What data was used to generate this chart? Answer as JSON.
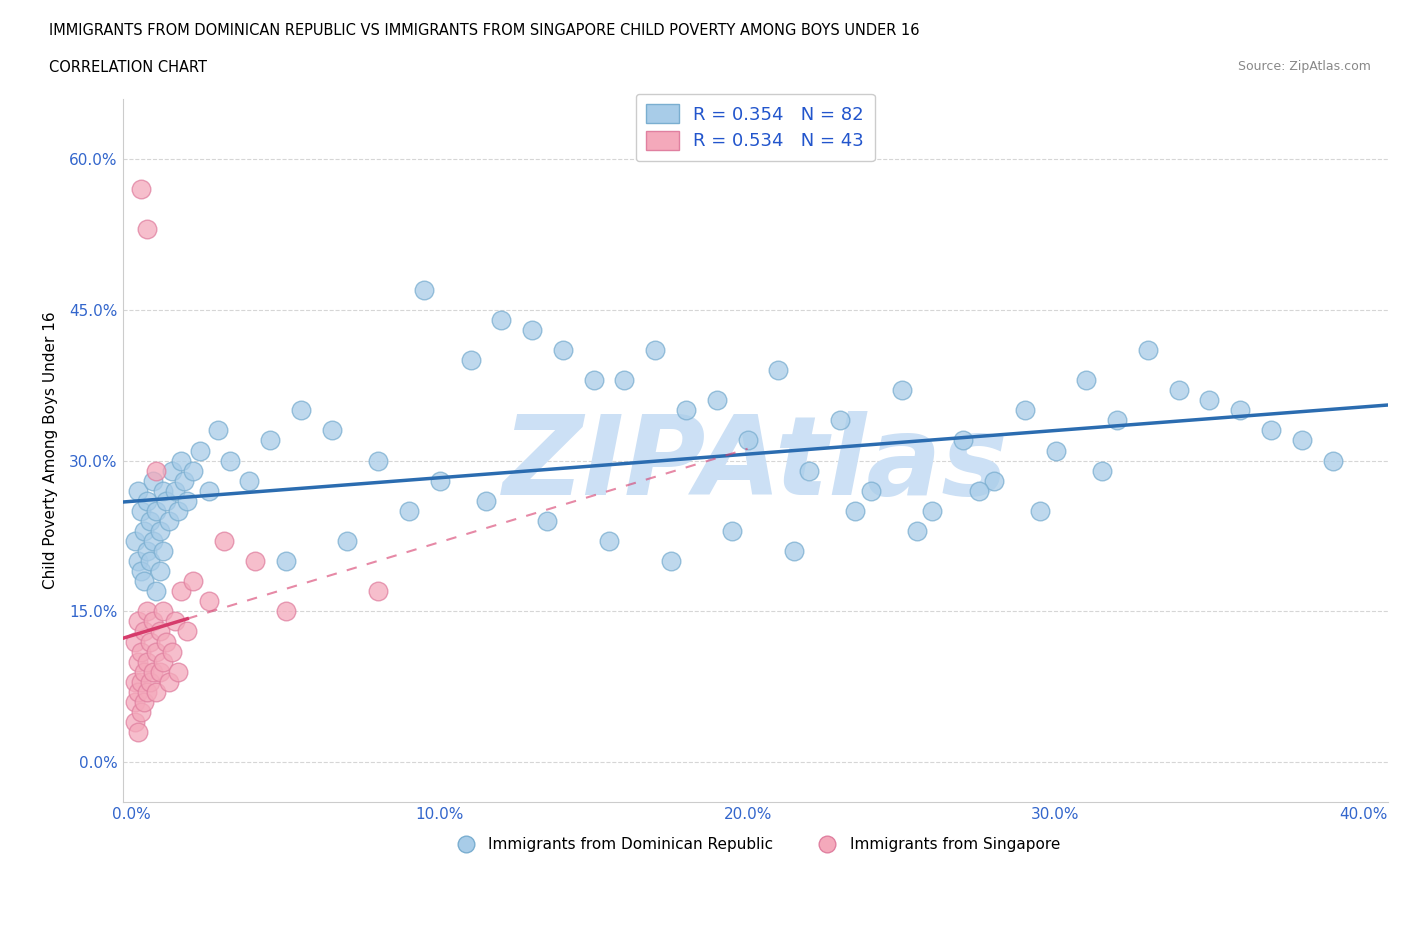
{
  "title": "IMMIGRANTS FROM DOMINICAN REPUBLIC VS IMMIGRANTS FROM SINGAPORE CHILD POVERTY AMONG BOYS UNDER 16",
  "subtitle": "CORRELATION CHART",
  "source": "Source: ZipAtlas.com",
  "ylabel": "Child Poverty Among Boys Under 16",
  "xlim": [
    -0.003,
    0.408
  ],
  "ylim": [
    -0.04,
    0.66
  ],
  "xticks": [
    0.0,
    0.1,
    0.2,
    0.3,
    0.4
  ],
  "xtick_labels": [
    "0.0%",
    "10.0%",
    "20.0%",
    "30.0%",
    "40.0%"
  ],
  "yticks": [
    0.0,
    0.15,
    0.3,
    0.45,
    0.6
  ],
  "ytick_labels": [
    "0.0%",
    "15.0%",
    "30.0%",
    "45.0%",
    "60.0%"
  ],
  "blue_R": 0.354,
  "blue_N": 82,
  "pink_R": 0.534,
  "pink_N": 43,
  "blue_color": "#a8cce8",
  "pink_color": "#f4a9bb",
  "blue_line_color": "#2b6cb0",
  "pink_line_color": "#d63b6b",
  "watermark": "ZIPAtlas",
  "watermark_color": "#cce0f5",
  "legend_label_blue": "Immigrants from Dominican Republic",
  "legend_label_pink": "Immigrants from Singapore",
  "blue_x": [
    0.001,
    0.002,
    0.002,
    0.003,
    0.003,
    0.004,
    0.004,
    0.005,
    0.005,
    0.006,
    0.006,
    0.007,
    0.007,
    0.008,
    0.008,
    0.009,
    0.009,
    0.01,
    0.01,
    0.011,
    0.012,
    0.013,
    0.014,
    0.015,
    0.016,
    0.017,
    0.018,
    0.02,
    0.022,
    0.025,
    0.028,
    0.032,
    0.038,
    0.045,
    0.055,
    0.065,
    0.08,
    0.095,
    0.11,
    0.13,
    0.15,
    0.17,
    0.19,
    0.21,
    0.23,
    0.25,
    0.27,
    0.29,
    0.31,
    0.33,
    0.35,
    0.37,
    0.39,
    0.12,
    0.14,
    0.16,
    0.18,
    0.2,
    0.22,
    0.24,
    0.26,
    0.28,
    0.3,
    0.32,
    0.34,
    0.36,
    0.38,
    0.05,
    0.07,
    0.09,
    0.1,
    0.115,
    0.135,
    0.155,
    0.175,
    0.195,
    0.215,
    0.235,
    0.255,
    0.275,
    0.295,
    0.315
  ],
  "blue_y": [
    0.22,
    0.2,
    0.27,
    0.25,
    0.19,
    0.23,
    0.18,
    0.26,
    0.21,
    0.24,
    0.2,
    0.28,
    0.22,
    0.17,
    0.25,
    0.23,
    0.19,
    0.27,
    0.21,
    0.26,
    0.24,
    0.29,
    0.27,
    0.25,
    0.3,
    0.28,
    0.26,
    0.29,
    0.31,
    0.27,
    0.33,
    0.3,
    0.28,
    0.32,
    0.35,
    0.33,
    0.3,
    0.47,
    0.4,
    0.43,
    0.38,
    0.41,
    0.36,
    0.39,
    0.34,
    0.37,
    0.32,
    0.35,
    0.38,
    0.41,
    0.36,
    0.33,
    0.3,
    0.44,
    0.41,
    0.38,
    0.35,
    0.32,
    0.29,
    0.27,
    0.25,
    0.28,
    0.31,
    0.34,
    0.37,
    0.35,
    0.32,
    0.2,
    0.22,
    0.25,
    0.28,
    0.26,
    0.24,
    0.22,
    0.2,
    0.23,
    0.21,
    0.25,
    0.23,
    0.27,
    0.25,
    0.29
  ],
  "pink_x": [
    0.001,
    0.001,
    0.001,
    0.001,
    0.002,
    0.002,
    0.002,
    0.002,
    0.003,
    0.003,
    0.003,
    0.004,
    0.004,
    0.004,
    0.005,
    0.005,
    0.005,
    0.006,
    0.006,
    0.007,
    0.007,
    0.008,
    0.008,
    0.009,
    0.009,
    0.01,
    0.01,
    0.011,
    0.012,
    0.013,
    0.014,
    0.015,
    0.016,
    0.018,
    0.02,
    0.025,
    0.03,
    0.04,
    0.05,
    0.08,
    0.003,
    0.005,
    0.008
  ],
  "pink_y": [
    0.08,
    0.12,
    0.06,
    0.04,
    0.1,
    0.14,
    0.07,
    0.03,
    0.11,
    0.08,
    0.05,
    0.13,
    0.09,
    0.06,
    0.15,
    0.1,
    0.07,
    0.12,
    0.08,
    0.14,
    0.09,
    0.11,
    0.07,
    0.13,
    0.09,
    0.15,
    0.1,
    0.12,
    0.08,
    0.11,
    0.14,
    0.09,
    0.17,
    0.13,
    0.18,
    0.16,
    0.22,
    0.2,
    0.15,
    0.17,
    0.57,
    0.53,
    0.29
  ]
}
